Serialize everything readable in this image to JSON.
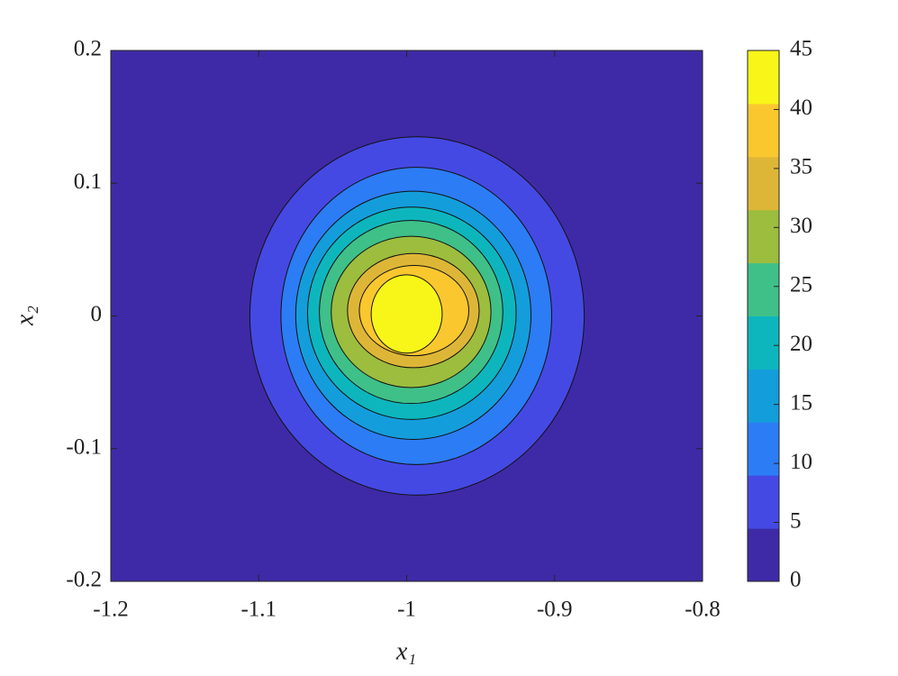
{
  "chart_data": {
    "type": "contour",
    "xlabel": "x₁",
    "ylabel": "x₂",
    "xlim": [
      -1.2,
      -0.8
    ],
    "xticks": [
      -1.2,
      -1.1,
      -1,
      -0.9,
      -0.8
    ],
    "ylim": [
      -0.2,
      0.2
    ],
    "yticks": [
      -0.2,
      -0.1,
      0,
      0.1,
      0.2
    ],
    "clim": [
      0,
      45
    ],
    "cticks": [
      0,
      5,
      10,
      15,
      20,
      25,
      30,
      35,
      40,
      45
    ],
    "colors": [
      "#3e2aa6",
      "#4549e3",
      "#2c7cf5",
      "#149ddb",
      "#0db6bd",
      "#3fc089",
      "#9cbd3e",
      "#deb637",
      "#fbc72f",
      "#f8f618"
    ],
    "contours": [
      {
        "level": 5,
        "xrange": [
          -1.106,
          -0.88
        ],
        "yrange": [
          -0.135,
          0.135
        ]
      },
      {
        "level": 10,
        "xrange": [
          -1.085,
          -0.902
        ],
        "yrange": [
          -0.112,
          0.112
        ]
      },
      {
        "level": 15,
        "xrange": [
          -1.075,
          -0.916
        ],
        "yrange": [
          -0.093,
          0.094
        ]
      },
      {
        "level": 20,
        "xrange": [
          -1.067,
          -0.926
        ],
        "yrange": [
          -0.078,
          0.082
        ]
      },
      {
        "level": 25,
        "xrange": [
          -1.059,
          -0.935
        ],
        "yrange": [
          -0.066,
          0.072
        ]
      },
      {
        "level": 30,
        "xrange": [
          -1.051,
          -0.943
        ],
        "yrange": [
          -0.054,
          0.06
        ]
      },
      {
        "level": 35,
        "xrange": [
          -1.04,
          -0.951
        ],
        "yrange": [
          -0.039,
          0.047
        ]
      },
      {
        "level": 40,
        "xrange": [
          -1.032,
          -0.958
        ],
        "yrange": [
          -0.03,
          0.038
        ]
      },
      {
        "level": 45,
        "xrange": [
          -1.024,
          -0.976
        ],
        "yrange": [
          -0.028,
          0.031
        ]
      }
    ]
  }
}
